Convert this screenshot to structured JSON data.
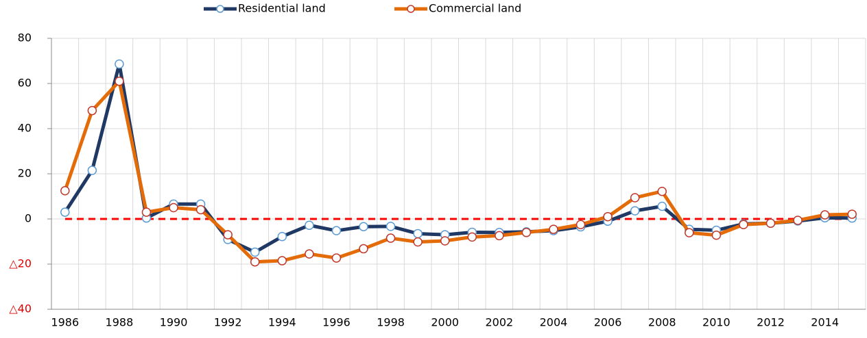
{
  "chart_data": {
    "type": "line",
    "x": [
      1986,
      1987,
      1988,
      1989,
      1990,
      1991,
      1992,
      1993,
      1994,
      1995,
      1996,
      1997,
      1998,
      1999,
      2000,
      2001,
      2002,
      2003,
      2004,
      2005,
      2006,
      2007,
      2008,
      2009,
      2010,
      2011,
      2012,
      2013,
      2014,
      2015
    ],
    "xlim": [
      1985.5,
      2015.5
    ],
    "xticks": [
      1986,
      1988,
      1990,
      1992,
      1994,
      1996,
      1998,
      2000,
      2002,
      2004,
      2006,
      2008,
      2010,
      2012,
      2014
    ],
    "ylim": [
      -40,
      80
    ],
    "yticks": [
      80,
      60,
      40,
      20,
      0,
      {
        "value": -20,
        "label": "△20"
      },
      {
        "value": -40,
        "label": "△40"
      }
    ],
    "grid": true,
    "legend": "top",
    "series": [
      {
        "name": "Residential land",
        "color": "#1f3864",
        "marker_stroke": "#5b9bd5",
        "values": [
          3,
          21.5,
          68.6,
          0.4,
          6.6,
          6.6,
          -9.1,
          -14.7,
          -7.8,
          -2.8,
          -5.2,
          -3.4,
          -3.3,
          -6.5,
          -7,
          -5.9,
          -6,
          -5.7,
          -5.2,
          -3.5,
          -1,
          3.6,
          5.6,
          -4.6,
          -5,
          -2.2,
          -1.9,
          -0.9,
          0.5,
          0.4
        ]
      },
      {
        "name": "Commercial land",
        "color": "#e36c09",
        "marker_stroke": "#c0392b",
        "values": [
          12.5,
          48,
          61,
          3,
          5,
          4.1,
          -7,
          -19,
          -18.5,
          -15.5,
          -17.3,
          -13.2,
          -8.5,
          -10.2,
          -9.7,
          -8,
          -7.4,
          -6,
          -4.6,
          -2.5,
          1,
          9.4,
          12.2,
          -6.1,
          -7.2,
          -2.5,
          -1.9,
          -0.6,
          1.8,
          2.1
        ]
      }
    ]
  }
}
